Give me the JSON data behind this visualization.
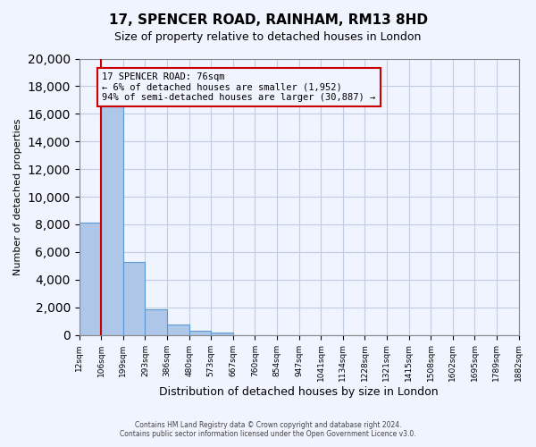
{
  "title": "17, SPENCER ROAD, RAINHAM, RM13 8HD",
  "subtitle": "Size of property relative to detached houses in London",
  "xlabel": "Distribution of detached houses by size in London",
  "ylabel": "Number of detached properties",
  "bin_labels": [
    "12sqm",
    "106sqm",
    "199sqm",
    "293sqm",
    "386sqm",
    "480sqm",
    "573sqm",
    "667sqm",
    "760sqm",
    "854sqm",
    "947sqm",
    "1041sqm",
    "1134sqm",
    "1228sqm",
    "1321sqm",
    "1415sqm",
    "1508sqm",
    "1602sqm",
    "1695sqm",
    "1789sqm",
    "1882sqm"
  ],
  "bar_heights": [
    8150,
    16600,
    5300,
    1850,
    750,
    280,
    170,
    0,
    0,
    0,
    0,
    0,
    0,
    0,
    0,
    0,
    0,
    0,
    0,
    0
  ],
  "bar_color": "#aec6e8",
  "bar_edge_color": "#5b9bd5",
  "red_line_x": 1,
  "property_size": "76sqm",
  "annotation_title": "17 SPENCER ROAD: 76sqm",
  "annotation_line1": "← 6% of detached houses are smaller (1,952)",
  "annotation_line2": "94% of semi-detached houses are larger (30,887) →",
  "annotation_box_edge": "#cc0000",
  "red_line_color": "#cc0000",
  "ylim": [
    0,
    20000
  ],
  "yticks": [
    0,
    2000,
    4000,
    6000,
    8000,
    10000,
    12000,
    14000,
    16000,
    18000,
    20000
  ],
  "footer_line1": "Contains HM Land Registry data © Crown copyright and database right 2024.",
  "footer_line2": "Contains public sector information licensed under the Open Government Licence v3.0.",
  "bg_color": "#f0f4ff",
  "grid_color": "#c0cce0"
}
